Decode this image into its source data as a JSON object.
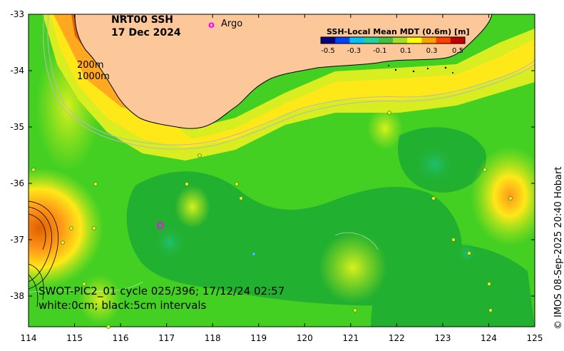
{
  "title": {
    "line1": "NRT00 SSH",
    "line2": "17 Dec 2024"
  },
  "legend": {
    "argo_symbol": "o",
    "argo_label": "Argo",
    "colorbar_title": "SSH-Local Mean MDT (0.6m) [m]",
    "colorbar_ticks": [
      "-0.5",
      "-0.3",
      "-0.1",
      "0.1",
      "0.3",
      "0.5"
    ],
    "colorbar_colors": [
      "#000080",
      "#0040ff",
      "#00c0ff",
      "#20d0a0",
      "#40c040",
      "#a0e020",
      "#ffff00",
      "#ffa000",
      "#ff4000",
      "#c00000"
    ]
  },
  "contours": {
    "label_200m": "200m",
    "label_1000m": "1000m"
  },
  "annotations": {
    "swot_pass": "SWOT-PIC2_01 cycle 025/396; 17/12/24 02:57",
    "intervals": "white:0cm; black:5cm intervals"
  },
  "copyright": "© IMOS 08-Sep-2025 20:40 Hobart",
  "axes": {
    "x_ticks": [
      "114",
      "115",
      "116",
      "117",
      "118",
      "119",
      "120",
      "121",
      "122",
      "123",
      "124",
      "125"
    ],
    "y_ticks": [
      "-33",
      "-34",
      "-35",
      "-36",
      "-37",
      "-38"
    ]
  },
  "colors": {
    "land": "#fcc89a",
    "ocean_base": "#44d022",
    "dark_green": "#22b030",
    "teal": "#20c070",
    "yellow_green": "#b8ea1c",
    "yellow": "#ffe818",
    "orange": "#ff9818",
    "dark_orange": "#e06000",
    "argo_marker": "#ff00ff",
    "isobath": "#b8b8b8"
  }
}
